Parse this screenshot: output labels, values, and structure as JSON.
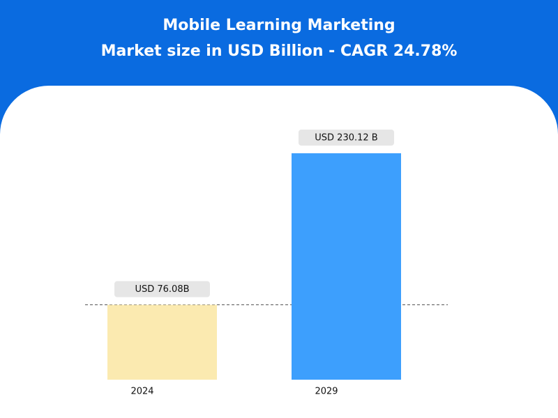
{
  "chart_data": {
    "type": "bar",
    "title": "Mobile Learning Marketing",
    "subtitle": "Market size in USD Billion - CAGR 24.78%",
    "categories": [
      "2024",
      "2029"
    ],
    "values": [
      76.08,
      230.12
    ],
    "value_labels": [
      "USD 76.08B",
      "USD 230.12 B"
    ],
    "colors": [
      "#fbeab0",
      "#3d9ffd"
    ]
  }
}
